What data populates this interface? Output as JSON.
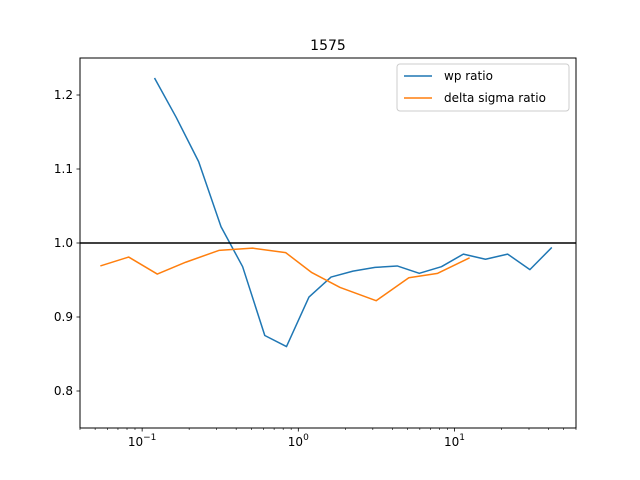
{
  "chart_data": {
    "type": "line",
    "title": "1575",
    "xlabel": "",
    "ylabel": "",
    "xscale": "log",
    "xlim": [
      0.04,
      60
    ],
    "ylim": [
      0.75,
      1.25
    ],
    "xticks": [
      {
        "value": 0.1,
        "base": "10",
        "exp": "−1"
      },
      {
        "value": 1,
        "base": "10",
        "exp": "0"
      },
      {
        "value": 10,
        "base": "10",
        "exp": "1"
      }
    ],
    "yticks": [
      {
        "value": 0.8,
        "label": "0.8"
      },
      {
        "value": 0.9,
        "label": "0.9"
      },
      {
        "value": 1.0,
        "label": "1.0"
      },
      {
        "value": 1.1,
        "label": "1.1"
      },
      {
        "value": 1.2,
        "label": "1.2"
      }
    ],
    "hline": {
      "y": 1.0,
      "color": "#000000"
    },
    "legend_position": "top-right",
    "grid": false,
    "series": [
      {
        "name": "wp ratio",
        "color": "#1f77b4",
        "x": [
          0.12,
          0.165,
          0.23,
          0.32,
          0.44,
          0.61,
          0.84,
          1.17,
          1.62,
          2.24,
          3.1,
          4.3,
          5.95,
          8.25,
          11.4,
          15.8,
          21.9,
          30.4,
          42.0
        ],
        "y": [
          1.223,
          1.17,
          1.11,
          1.022,
          0.968,
          0.875,
          0.86,
          0.927,
          0.954,
          0.962,
          0.967,
          0.969,
          0.959,
          0.968,
          0.985,
          0.978,
          0.985,
          0.964,
          0.994
        ]
      },
      {
        "name": "delta sigma ratio",
        "color": "#ff7f0e",
        "x": [
          0.054,
          0.082,
          0.125,
          0.19,
          0.31,
          0.51,
          0.83,
          1.22,
          1.85,
          3.15,
          5.1,
          7.8,
          12.5
        ],
        "y": [
          0.969,
          0.981,
          0.958,
          0.974,
          0.99,
          0.993,
          0.987,
          0.96,
          0.94,
          0.922,
          0.953,
          0.959,
          0.98
        ]
      }
    ]
  }
}
